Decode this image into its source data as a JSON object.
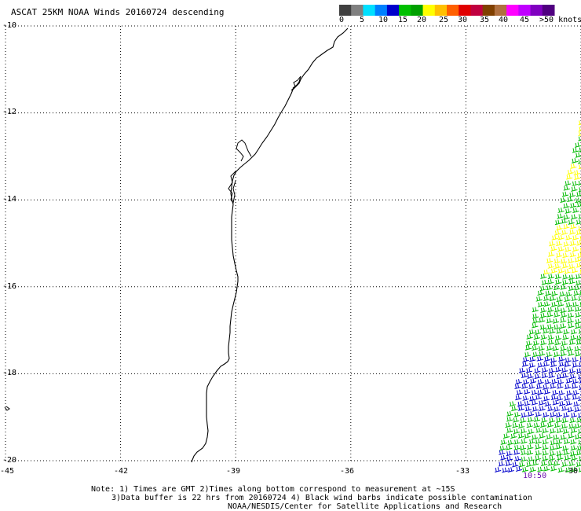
{
  "title": "ASCAT 25KM NOAA Winds 20160724 descending",
  "color_scale": {
    "colors": [
      "#404040",
      "#808080",
      "#00e0ff",
      "#0080ff",
      "#0000cc",
      "#00c000",
      "#00a000",
      "#ffff00",
      "#ffc000",
      "#ff6000",
      "#e00000",
      "#c00040",
      "#804000",
      "#b07040",
      "#ff00ff",
      "#c000ff",
      "#8000c0",
      "#500080"
    ],
    "labels": [
      "0",
      "5",
      "10",
      "15",
      "20",
      "25",
      "30",
      "35",
      "40",
      "45",
      ">50 knots"
    ]
  },
  "map": {
    "lat_labels": [
      "-10",
      "-12",
      "-14",
      "-16",
      "-18",
      "-20"
    ],
    "lon_labels": [
      "-45",
      "-42",
      "-39",
      "-36",
      "-33",
      "-30"
    ],
    "lat_values": [
      -10,
      -12,
      -14,
      -16,
      -18,
      -20
    ],
    "lon_values": [
      -45,
      -42,
      -39,
      -36,
      -33,
      -30
    ],
    "barb_colors": {
      "green": "#00bb00",
      "yellow": "#ffff00",
      "blue": "#0000cc"
    }
  },
  "time_label": "10:50",
  "notes": {
    "line1": "Note: 1) Times are GMT 2)Times along bottom correspond to measurement at ~15S",
    "line2": "3)Data buffer is 22 hrs from 20160724 4) Black wind barbs indicate possible contamination",
    "line3": "NOAA/NESDIS/Center for Satellite Applications and Research"
  }
}
